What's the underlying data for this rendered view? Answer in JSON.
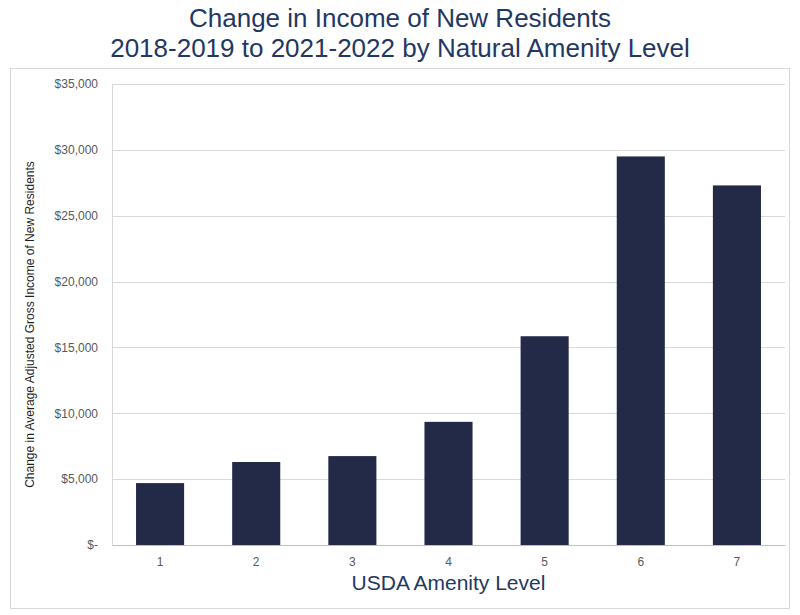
{
  "chart_data": {
    "type": "bar",
    "title": "Change in Income of New Residents\n2018-2019 to 2021-2022 by Natural Amenity Level",
    "x_label": "USDA Amenity Level",
    "y_label": "Change in Average Adjusted Gross Income of New Residents",
    "categories": [
      "1",
      "2",
      "3",
      "4",
      "5",
      "6",
      "7"
    ],
    "values": [
      4700,
      6300,
      6750,
      9350,
      15850,
      29500,
      27300
    ],
    "color": "#222a47",
    "ylim": [
      0,
      35000
    ],
    "yticks": [
      {
        "value": 0,
        "label": "$-"
      },
      {
        "value": 5000,
        "label": "$5,000"
      },
      {
        "value": 10000,
        "label": "$10,000"
      },
      {
        "value": 15000,
        "label": "$15,000"
      },
      {
        "value": 20000,
        "label": "$20,000"
      },
      {
        "value": 25000,
        "label": "$25,000"
      },
      {
        "value": 30000,
        "label": "$30,000"
      },
      {
        "value": 35000,
        "label": "$35,000"
      }
    ],
    "grid": true
  }
}
